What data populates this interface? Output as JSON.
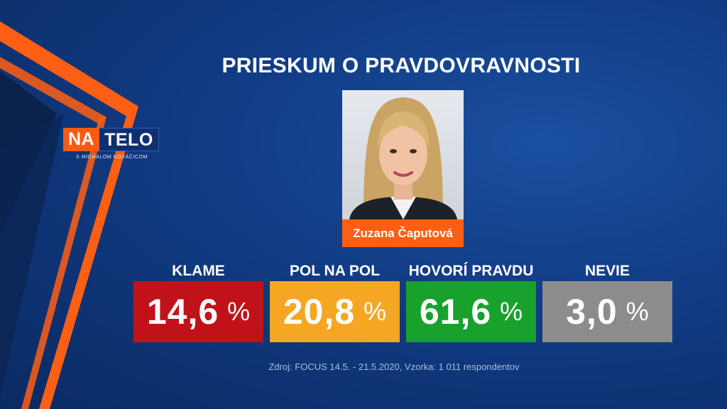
{
  "title": "PRIESKUM O PRAVDOVRAVNOSTI",
  "logo": {
    "part1": "NA",
    "part2": "TELO",
    "subtitle": "S MICHALOM KOVÁČICOM"
  },
  "person": {
    "name": "Zuzana Čaputová"
  },
  "colors": {
    "klame": "#c1121a",
    "pol_na_pol": "#f5a623",
    "hovori_pravdu": "#18a12d",
    "nevie": "#8c8c8c",
    "accent": "#ff5f14"
  },
  "chart_data": {
    "type": "bar",
    "categories": [
      "KLAME",
      "POL NA POL",
      "HOVORÍ PRAVDU",
      "NEVIE"
    ],
    "values": [
      14.6,
      20.8,
      61.6,
      3.0
    ],
    "value_labels": [
      "14,6",
      "20,8",
      "61,6",
      "3,0"
    ],
    "unit": "%",
    "title": "PRIESKUM O PRAVDOVRAVNOSTI"
  },
  "source": "Zdroj: FOCUS 14.5. - 21.5.2020, Vzorka: 1 011 respondentov"
}
